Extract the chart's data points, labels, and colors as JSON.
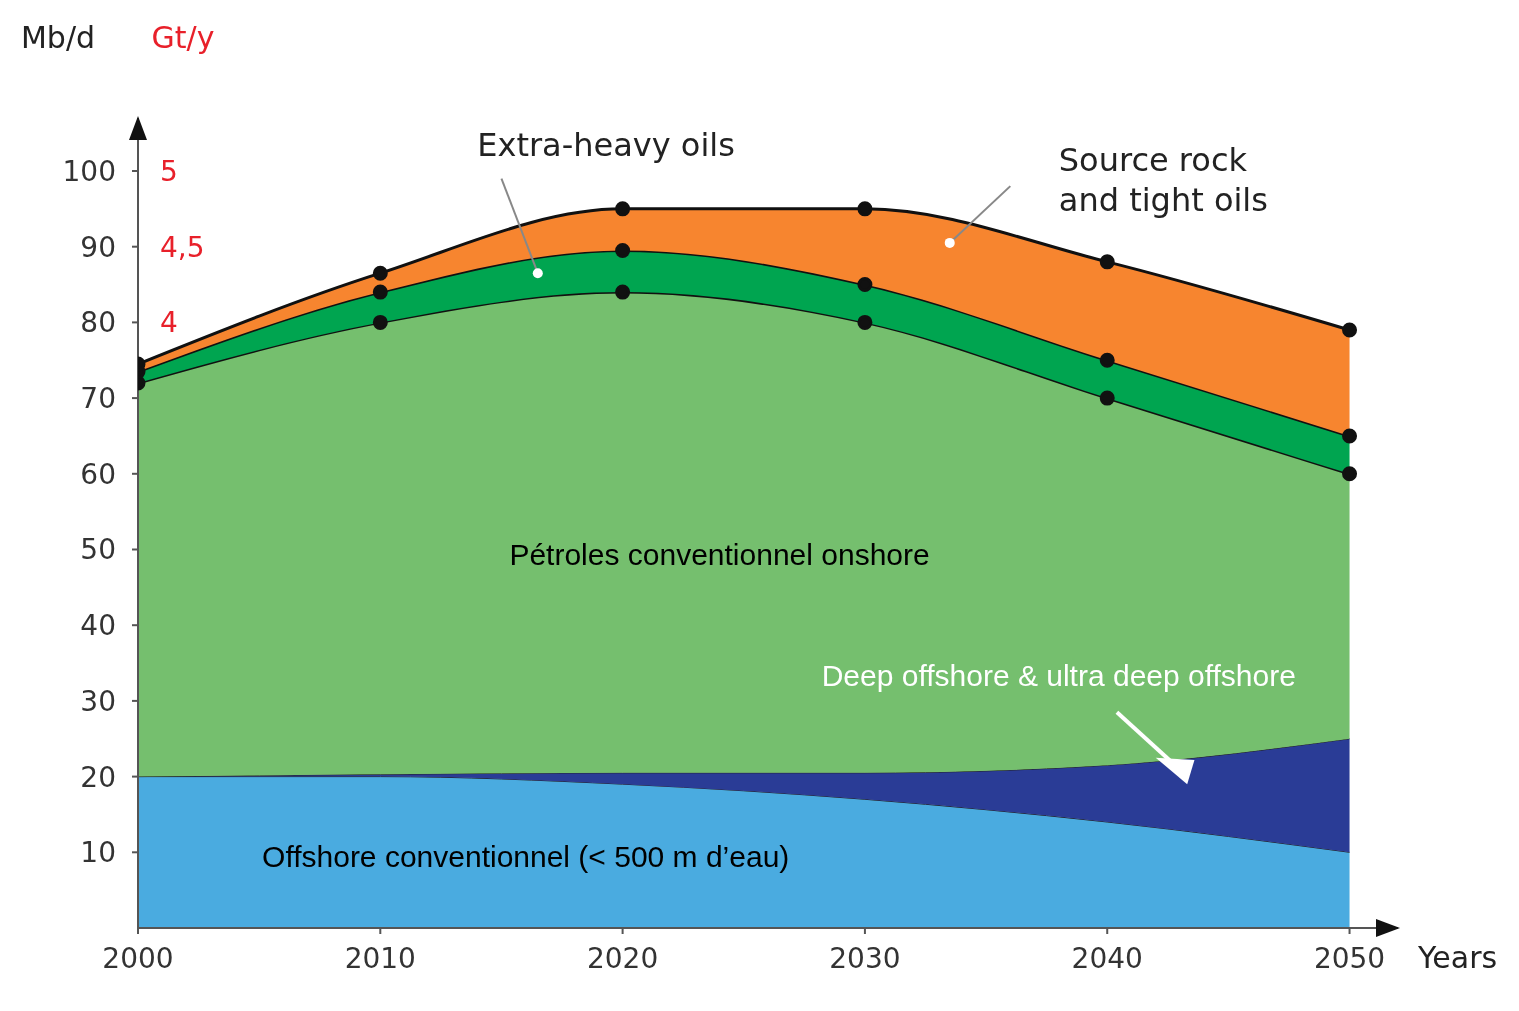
{
  "chart_data": {
    "type": "area",
    "stacked": true,
    "x": [
      2000,
      2010,
      2020,
      2030,
      2040,
      2050
    ],
    "series": [
      {
        "name": "Offshore conventionnel (< 500 m d’eau)",
        "color": "#4aabe0",
        "values": [
          20,
          20,
          19,
          17,
          14,
          10
        ]
      },
      {
        "name": "Deep offshore & ultra deep offshore",
        "color": "#2a3c96",
        "values": [
          0,
          0.3,
          1.5,
          3.5,
          7.5,
          15
        ]
      },
      {
        "name": "Pétroles conventionnel onshore",
        "color": "#75bf6e",
        "values": [
          52,
          59.7,
          63.5,
          59.5,
          48.5,
          35
        ],
        "marker": "circle"
      },
      {
        "name": "Extra-heavy oils",
        "color": "#00a550",
        "values": [
          1.5,
          4,
          5.5,
          5,
          5,
          5
        ],
        "marker": "circle"
      },
      {
        "name": "Source rock and tight oils",
        "color": "#f7852f",
        "values": [
          1,
          2.5,
          5.5,
          10,
          13,
          14
        ],
        "marker": "circle"
      }
    ],
    "xlim": [
      2000,
      2052
    ],
    "xticks": [
      2000,
      2010,
      2020,
      2030,
      2040,
      2050
    ],
    "ylim": [
      0,
      107
    ],
    "yticks": [
      10,
      20,
      30,
      40,
      50,
      60,
      70,
      80,
      90,
      100
    ],
    "y2lim": [
      0,
      5.35
    ],
    "y2ticks": [
      4,
      {
        "value": 4.5,
        "label": "4,5"
      },
      5
    ],
    "ylabel": "Mb/d",
    "y2label": "Gt/y",
    "xlabel": "Years"
  }
}
